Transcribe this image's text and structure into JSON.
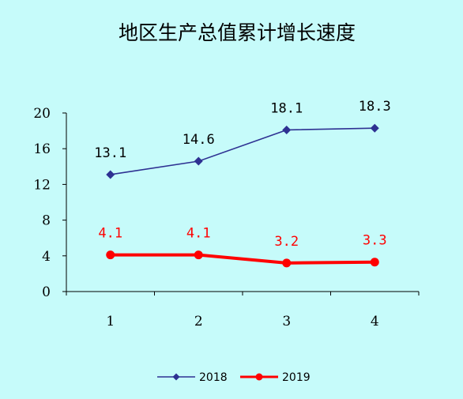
{
  "chart_data": {
    "type": "line",
    "title": "地区生产总值累计增长速度",
    "xlabel": "",
    "ylabel": "",
    "categories": [
      "1",
      "2",
      "3",
      "4"
    ],
    "ylim": [
      0,
      20
    ],
    "yticks": [
      "0",
      "4",
      "8",
      "12",
      "16",
      "20"
    ],
    "grid": false,
    "legend_position": "bottom",
    "series": [
      {
        "name": "2018",
        "values": [
          13.1,
          14.6,
          18.1,
          18.3
        ],
        "labels": [
          "13.1",
          "14.6",
          "18.1",
          "18.3"
        ],
        "color": "#2e3192",
        "marker": "diamond"
      },
      {
        "name": "2019",
        "values": [
          4.1,
          4.1,
          3.2,
          3.3
        ],
        "labels": [
          "4.1",
          "4.1",
          "3.2",
          "3.3"
        ],
        "color": "#ff0000",
        "marker": "circle"
      }
    ]
  }
}
